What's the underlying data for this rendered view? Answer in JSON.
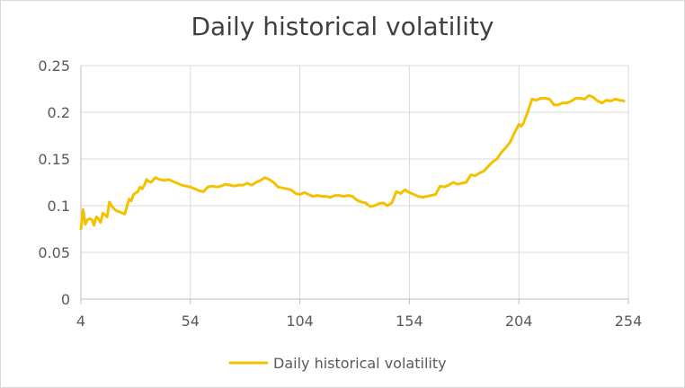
{
  "chart_data": {
    "type": "line",
    "title": "Daily historical volatility",
    "xlabel": "",
    "ylabel": "",
    "xlim": [
      4,
      254
    ],
    "ylim": [
      0,
      0.25
    ],
    "x_ticks": [
      4,
      54,
      104,
      154,
      204,
      254
    ],
    "y_ticks": [
      0,
      0.05,
      0.1,
      0.15,
      0.2,
      0.25
    ],
    "y_tick_labels": [
      "0",
      "0.05",
      "0.1",
      "0.15",
      "0.2",
      "0.25"
    ],
    "grid": true,
    "legend": "bottom",
    "series": [
      {
        "name": "Daily historical volatility",
        "color": "#f5c000",
        "x": [
          4,
          5,
          6,
          7,
          8,
          9,
          10,
          11,
          12,
          13,
          14,
          15,
          16,
          17,
          18,
          19,
          20,
          22,
          24,
          26,
          27,
          28,
          30,
          31,
          32,
          33,
          34,
          35,
          36,
          38,
          40,
          42,
          44,
          46,
          48,
          50,
          52,
          54,
          56,
          58,
          60,
          62,
          64,
          66,
          68,
          70,
          72,
          74,
          76,
          78,
          80,
          82,
          84,
          86,
          88,
          90,
          92,
          94,
          96,
          98,
          100,
          102,
          104,
          106,
          108,
          110,
          112,
          114,
          116,
          118,
          120,
          122,
          124,
          126,
          128,
          130,
          132,
          134,
          136,
          138,
          140,
          142,
          144,
          146,
          148,
          150,
          152,
          154,
          156,
          158,
          160,
          162,
          164,
          166,
          168,
          170,
          172,
          174,
          176,
          178,
          180,
          182,
          184,
          186,
          188,
          190,
          192,
          194,
          196,
          198,
          200,
          202,
          204,
          205,
          206,
          208,
          210,
          212,
          214,
          216,
          218,
          220,
          222,
          224,
          226,
          228,
          230,
          232,
          234,
          236,
          238,
          240,
          242,
          244,
          246,
          248,
          250,
          252
        ],
        "values": [
          0.075,
          0.096,
          0.08,
          0.085,
          0.086,
          0.085,
          0.079,
          0.088,
          0.086,
          0.082,
          0.092,
          0.09,
          0.088,
          0.104,
          0.1,
          0.097,
          0.095,
          0.093,
          0.091,
          0.107,
          0.105,
          0.112,
          0.115,
          0.12,
          0.118,
          0.122,
          0.128,
          0.126,
          0.125,
          0.13,
          0.128,
          0.127,
          0.128,
          0.126,
          0.124,
          0.122,
          0.121,
          0.12,
          0.118,
          0.116,
          0.115,
          0.12,
          0.121,
          0.12,
          0.121,
          0.123,
          0.122,
          0.121,
          0.122,
          0.122,
          0.124,
          0.122,
          0.125,
          0.127,
          0.13,
          0.128,
          0.125,
          0.12,
          0.119,
          0.118,
          0.117,
          0.113,
          0.112,
          0.114,
          0.112,
          0.11,
          0.111,
          0.11,
          0.11,
          0.109,
          0.111,
          0.111,
          0.11,
          0.111,
          0.11,
          0.106,
          0.104,
          0.103,
          0.099,
          0.1,
          0.102,
          0.103,
          0.1,
          0.103,
          0.115,
          0.113,
          0.117,
          0.114,
          0.112,
          0.11,
          0.109,
          0.11,
          0.111,
          0.112,
          0.121,
          0.12,
          0.122,
          0.125,
          0.123,
          0.124,
          0.125,
          0.133,
          0.132,
          0.135,
          0.137,
          0.142,
          0.147,
          0.15,
          0.157,
          0.162,
          0.168,
          0.178,
          0.187,
          0.185,
          0.188,
          0.2,
          0.214,
          0.213,
          0.215,
          0.215,
          0.214,
          0.208,
          0.208,
          0.21,
          0.21,
          0.212,
          0.215,
          0.215,
          0.214,
          0.218,
          0.216,
          0.212,
          0.21,
          0.213,
          0.212,
          0.214,
          0.213,
          0.212
        ]
      }
    ]
  }
}
